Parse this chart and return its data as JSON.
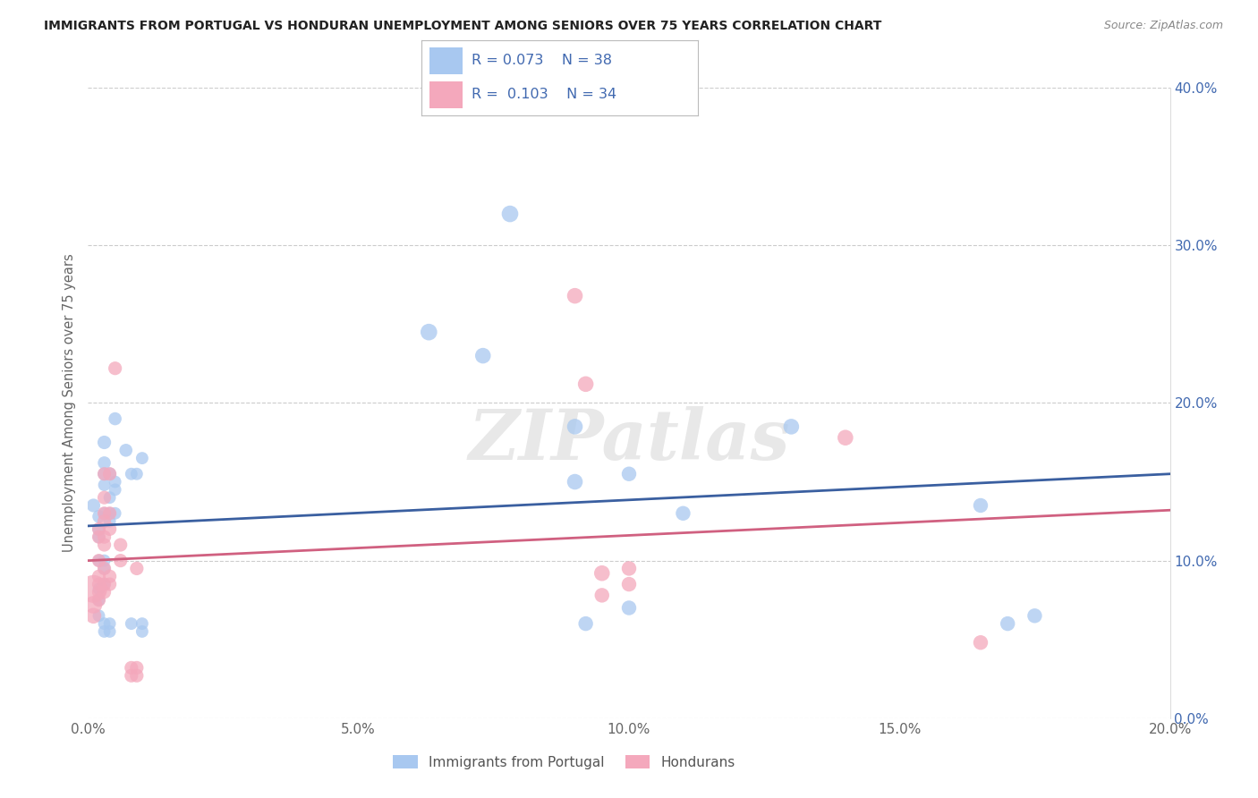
{
  "title": "IMMIGRANTS FROM PORTUGAL VS HONDURAN UNEMPLOYMENT AMONG SENIORS OVER 75 YEARS CORRELATION CHART",
  "source": "Source: ZipAtlas.com",
  "ylabel_label": "Unemployment Among Seniors over 75 years",
  "xlim": [
    0.0,
    0.2
  ],
  "ylim": [
    0.0,
    0.4
  ],
  "legend_label1": "Immigrants from Portugal",
  "legend_label2": "Hondurans",
  "color_blue": "#a8c8f0",
  "color_pink": "#f4a8bc",
  "line_color_blue": "#3a5fa0",
  "line_color_pink": "#d06080",
  "watermark": "ZIPatlas",
  "blue_points": [
    [
      0.001,
      0.135
    ],
    [
      0.002,
      0.128
    ],
    [
      0.002,
      0.12
    ],
    [
      0.002,
      0.115
    ],
    [
      0.002,
      0.1
    ],
    [
      0.002,
      0.082
    ],
    [
      0.002,
      0.075
    ],
    [
      0.002,
      0.065
    ],
    [
      0.003,
      0.175
    ],
    [
      0.003,
      0.162
    ],
    [
      0.003,
      0.155
    ],
    [
      0.003,
      0.148
    ],
    [
      0.003,
      0.13
    ],
    [
      0.003,
      0.1
    ],
    [
      0.003,
      0.095
    ],
    [
      0.003,
      0.085
    ],
    [
      0.003,
      0.06
    ],
    [
      0.003,
      0.055
    ],
    [
      0.004,
      0.155
    ],
    [
      0.004,
      0.14
    ],
    [
      0.004,
      0.13
    ],
    [
      0.004,
      0.125
    ],
    [
      0.004,
      0.06
    ],
    [
      0.004,
      0.055
    ],
    [
      0.005,
      0.19
    ],
    [
      0.005,
      0.15
    ],
    [
      0.005,
      0.145
    ],
    [
      0.005,
      0.13
    ],
    [
      0.007,
      0.17
    ],
    [
      0.008,
      0.155
    ],
    [
      0.008,
      0.06
    ],
    [
      0.009,
      0.155
    ],
    [
      0.01,
      0.165
    ],
    [
      0.01,
      0.06
    ],
    [
      0.01,
      0.055
    ],
    [
      0.063,
      0.245
    ],
    [
      0.073,
      0.23
    ],
    [
      0.078,
      0.32
    ],
    [
      0.09,
      0.185
    ],
    [
      0.09,
      0.15
    ],
    [
      0.092,
      0.06
    ],
    [
      0.1,
      0.155
    ],
    [
      0.1,
      0.07
    ],
    [
      0.11,
      0.13
    ],
    [
      0.13,
      0.185
    ],
    [
      0.165,
      0.135
    ],
    [
      0.17,
      0.06
    ],
    [
      0.175,
      0.065
    ]
  ],
  "pink_points": [
    [
      0.001,
      0.082
    ],
    [
      0.001,
      0.072
    ],
    [
      0.001,
      0.065
    ],
    [
      0.002,
      0.12
    ],
    [
      0.002,
      0.115
    ],
    [
      0.002,
      0.1
    ],
    [
      0.002,
      0.09
    ],
    [
      0.002,
      0.085
    ],
    [
      0.002,
      0.08
    ],
    [
      0.002,
      0.075
    ],
    [
      0.003,
      0.155
    ],
    [
      0.003,
      0.14
    ],
    [
      0.003,
      0.13
    ],
    [
      0.003,
      0.125
    ],
    [
      0.003,
      0.115
    ],
    [
      0.003,
      0.11
    ],
    [
      0.003,
      0.095
    ],
    [
      0.003,
      0.085
    ],
    [
      0.003,
      0.08
    ],
    [
      0.004,
      0.155
    ],
    [
      0.004,
      0.13
    ],
    [
      0.004,
      0.12
    ],
    [
      0.004,
      0.09
    ],
    [
      0.004,
      0.085
    ],
    [
      0.005,
      0.222
    ],
    [
      0.006,
      0.11
    ],
    [
      0.006,
      0.1
    ],
    [
      0.008,
      0.032
    ],
    [
      0.008,
      0.027
    ],
    [
      0.009,
      0.095
    ],
    [
      0.009,
      0.032
    ],
    [
      0.009,
      0.027
    ],
    [
      0.09,
      0.268
    ],
    [
      0.092,
      0.212
    ],
    [
      0.095,
      0.092
    ],
    [
      0.095,
      0.078
    ],
    [
      0.1,
      0.095
    ],
    [
      0.1,
      0.085
    ],
    [
      0.14,
      0.178
    ],
    [
      0.165,
      0.048
    ]
  ],
  "blue_point_sizes": [
    120,
    110,
    110,
    100,
    100,
    100,
    100,
    100,
    120,
    110,
    110,
    100,
    100,
    100,
    100,
    100,
    100,
    100,
    110,
    100,
    100,
    100,
    100,
    100,
    110,
    100,
    100,
    100,
    110,
    100,
    100,
    100,
    100,
    100,
    100,
    180,
    160,
    180,
    160,
    160,
    140,
    140,
    140,
    140,
    160,
    140,
    140,
    140
  ],
  "pink_point_sizes": [
    500,
    200,
    160,
    120,
    120,
    120,
    120,
    120,
    120,
    120,
    120,
    120,
    120,
    120,
    120,
    120,
    120,
    120,
    120,
    120,
    120,
    120,
    120,
    120,
    120,
    120,
    120,
    120,
    120,
    120,
    120,
    120,
    160,
    160,
    160,
    140,
    140,
    140,
    160,
    140
  ],
  "blue_trendline_x": [
    0.0,
    0.2
  ],
  "blue_trendline_y": [
    0.122,
    0.155
  ],
  "pink_trendline_x": [
    0.0,
    0.2
  ],
  "pink_trendline_y": [
    0.1,
    0.132
  ]
}
